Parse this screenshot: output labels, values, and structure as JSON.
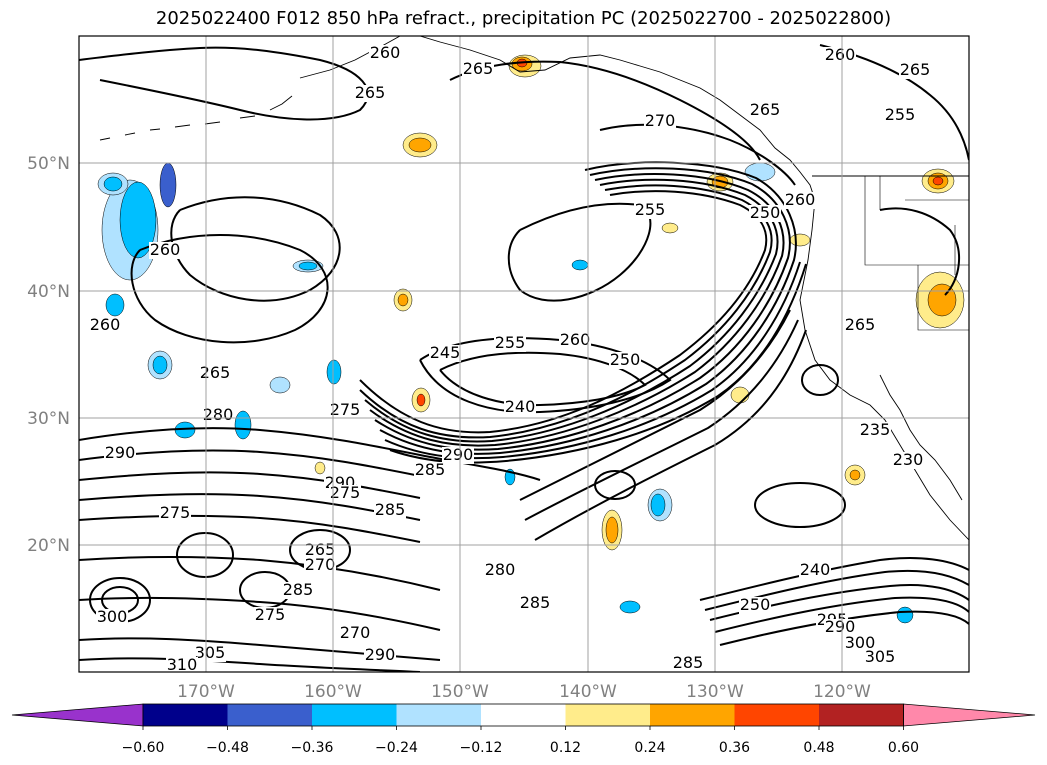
{
  "title": "2025022400 F012 850 hPa refract., precipitation PC (2025022700 - 2025022800)",
  "map": {
    "lat_ticks": [
      "50°N",
      "40°N",
      "30°N",
      "20°N"
    ],
    "lon_ticks": [
      "170°W",
      "160°W",
      "150°W",
      "140°W",
      "130°W",
      "120°W"
    ],
    "gridline_color": "#a0a0a0",
    "contour_labels": [
      {
        "text": "260"
      },
      {
        "text": "265"
      },
      {
        "text": "265"
      },
      {
        "text": "270"
      },
      {
        "text": "260"
      },
      {
        "text": "265"
      },
      {
        "text": "265"
      },
      {
        "text": "255"
      },
      {
        "text": "260"
      },
      {
        "text": "260"
      },
      {
        "text": "255"
      },
      {
        "text": "250"
      },
      {
        "text": "260"
      },
      {
        "text": "245"
      },
      {
        "text": "255"
      },
      {
        "text": "260"
      },
      {
        "text": "250"
      },
      {
        "text": "240"
      },
      {
        "text": "265"
      },
      {
        "text": "280"
      },
      {
        "text": "275"
      },
      {
        "text": "290"
      },
      {
        "text": "285"
      },
      {
        "text": "290"
      },
      {
        "text": "275"
      },
      {
        "text": "285"
      },
      {
        "text": "275"
      },
      {
        "text": "265"
      },
      {
        "text": "270"
      },
      {
        "text": "285"
      },
      {
        "text": "280"
      },
      {
        "text": "285"
      },
      {
        "text": "275"
      },
      {
        "text": "270"
      },
      {
        "text": "300"
      },
      {
        "text": "305"
      },
      {
        "text": "310"
      },
      {
        "text": "290"
      },
      {
        "text": "285"
      },
      {
        "text": "250"
      },
      {
        "text": "240"
      },
      {
        "text": "295"
      },
      {
        "text": "290"
      },
      {
        "text": "300"
      },
      {
        "text": "305"
      },
      {
        "text": "235"
      },
      {
        "text": "230"
      },
      {
        "text": "265"
      },
      {
        "text": "290"
      }
    ]
  },
  "colorbar": {
    "tick_labels": [
      "−0.60",
      "−0.48",
      "−0.36",
      "−0.24",
      "−0.12",
      "0.12",
      "0.24",
      "0.36",
      "0.48",
      "0.60"
    ],
    "colors": [
      "#9932cc",
      "#00008b",
      "#3a5fcd",
      "#00bfff",
      "#b0e2ff",
      "#ffffff",
      "#ffec8b",
      "#ffa500",
      "#ff4500",
      "#b22222",
      "#ff88aa"
    ]
  },
  "shading": {
    "positive_light": "#ffec8b",
    "positive_mid": "#ffa500",
    "positive_high": "#ff4500",
    "negative_light": "#b0e2ff",
    "negative_mid": "#00bfff",
    "negative_high": "#3a5fcd",
    "negative_max": "#9932cc"
  }
}
